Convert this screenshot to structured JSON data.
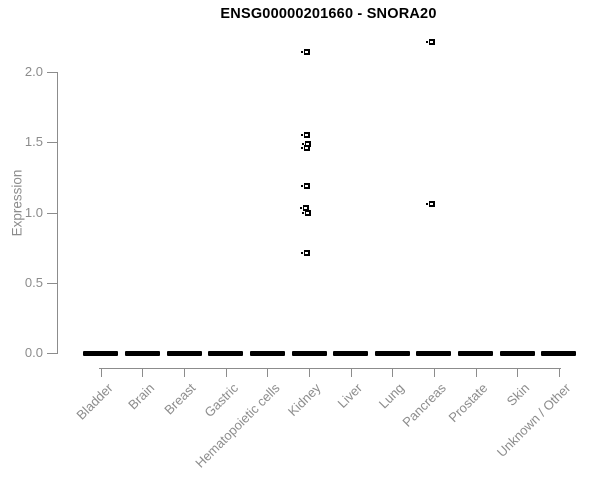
{
  "chart_data": {
    "type": "scatter",
    "title": "ENSG00000201660 - SNORA20",
    "ylabel": "Expression",
    "xlabel": "",
    "ylim": [
      0,
      2.3
    ],
    "grid": false,
    "legend": "none",
    "y_axis": {
      "label": "Expression",
      "ticks": [
        {
          "value": 0.0,
          "label": "0.0"
        },
        {
          "value": 0.5,
          "label": "0.5"
        },
        {
          "value": 1.0,
          "label": "1.0"
        },
        {
          "value": 1.5,
          "label": "1.5"
        },
        {
          "value": 2.0,
          "label": "2.0"
        }
      ]
    },
    "categories": [
      "Bladder",
      "Brain",
      "Breast",
      "Gastric",
      "Hematopoietic cells",
      "Kidney",
      "Liver",
      "Lung",
      "Pancreas",
      "Prostate",
      "Skin",
      "Unknown / Other"
    ],
    "groups": [
      {
        "label": "Bladder",
        "zero_cluster": true,
        "points": []
      },
      {
        "label": "Brain",
        "zero_cluster": true,
        "points": []
      },
      {
        "label": "Breast",
        "zero_cluster": true,
        "points": []
      },
      {
        "label": "Gastric",
        "zero_cluster": true,
        "points": []
      },
      {
        "label": "Hematopoietic cells",
        "zero_cluster": true,
        "points": []
      },
      {
        "label": "Kidney",
        "zero_cluster": true,
        "points": [
          {
            "value": 2.14,
            "dx": -2
          },
          {
            "value": 1.55,
            "dx": -2
          },
          {
            "value": 1.49,
            "dx": -1
          },
          {
            "value": 1.46,
            "dx": -2
          },
          {
            "value": 1.19,
            "dx": -2
          },
          {
            "value": 1.03,
            "dx": -3
          },
          {
            "value": 1.0,
            "dx": -1
          },
          {
            "value": 0.71,
            "dx": -2
          }
        ]
      },
      {
        "label": "Liver",
        "zero_cluster": true,
        "points": []
      },
      {
        "label": "Lung",
        "zero_cluster": true,
        "points": []
      },
      {
        "label": "Pancreas",
        "zero_cluster": true,
        "points": [
          {
            "value": 2.21,
            "dx": -2
          },
          {
            "value": 1.06,
            "dx": -2
          }
        ]
      },
      {
        "label": "Prostate",
        "zero_cluster": true,
        "points": []
      },
      {
        "label": "Skin",
        "zero_cluster": true,
        "points": []
      },
      {
        "label": "Unknown / Other",
        "zero_cluster": true,
        "points": []
      }
    ],
    "colors": {
      "marker": "#000000",
      "axis": "#8c8c8c",
      "title": "#000000",
      "background": "#ffffff"
    }
  }
}
